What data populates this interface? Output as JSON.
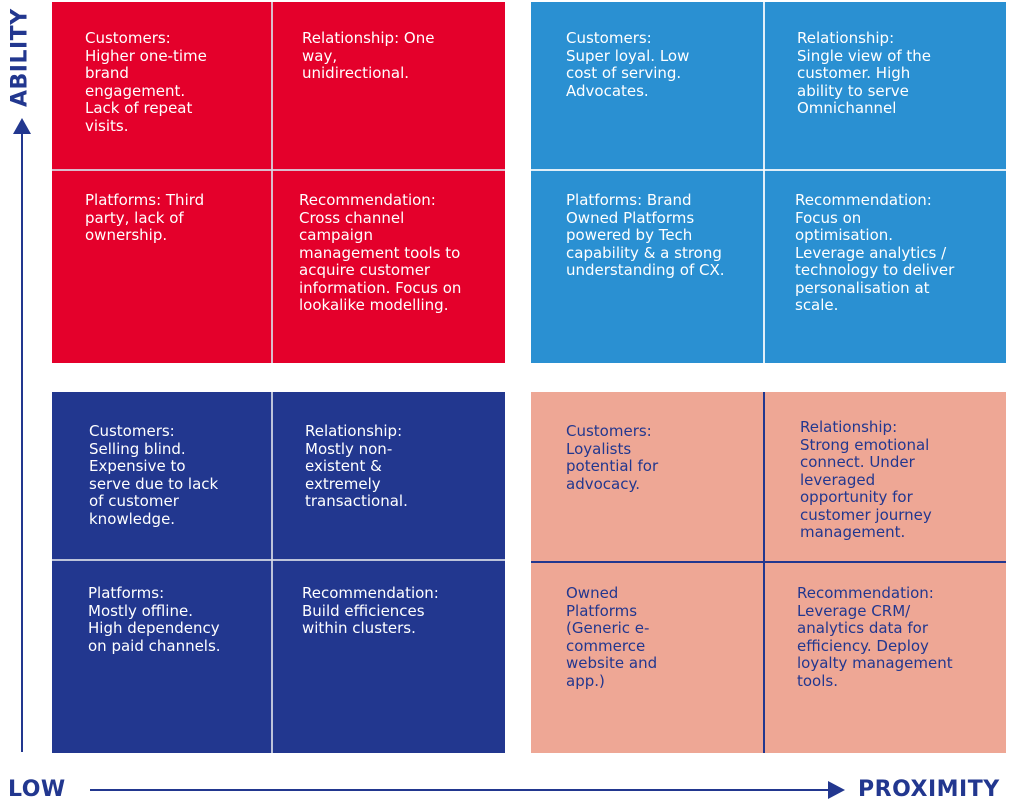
{
  "axes": {
    "y_label": "ABILITY",
    "x_low_label": "LOW",
    "x_label": "PROXIMITY",
    "color": "#22378f"
  },
  "quadrants": {
    "top_left": {
      "color": "#e4002b",
      "customers": "Customers:\nHigher one-time\nbrand\nengagement.\nLack of repeat\nvisits.",
      "relationship": "Relationship: One\nway,\nunidirectional.",
      "platforms": "Platforms: Third\nparty, lack of\nownership.",
      "recommendation": "Recommendation:\nCross channel\ncampaign\nmanagement tools to\nacquire customer\ninformation. Focus on\nlookalike modelling."
    },
    "top_right": {
      "color": "#2a90d2",
      "customers": "Customers:\nSuper loyal. Low\ncost of serving.\nAdvocates.",
      "relationship": "Relationship:\nSingle view of the\ncustomer. High\nability to serve\nOmnichannel",
      "platforms": "Platforms: Brand\nOwned Platforms\npowered by Tech\ncapability & a strong\nunderstanding of CX.",
      "recommendation": "Recommendation:\nFocus on\noptimisation.\nLeverage analytics /\ntechnology to deliver\npersonalisation at\nscale."
    },
    "bottom_left": {
      "color": "#22378f",
      "customers": "Customers:\nSelling blind.\nExpensive to\nserve due to lack\nof customer\nknowledge.",
      "relationship": "Relationship:\nMostly non-\nexistent &\nextremely\ntransactional.",
      "platforms": "Platforms:\nMostly offline.\nHigh dependency\non paid channels.",
      "recommendation": "Recommendation:\nBuild efficiences\nwithin clusters."
    },
    "bottom_right": {
      "color": "#eea795",
      "customers": "Customers:\nLoyalists\npotential for\nadvocacy.",
      "relationship": "Relationship:\nStrong emotional\nconnect. Under\nleveraged\nopportunity for\ncustomer journey\nmanagement.",
      "platforms": "Owned\nPlatforms\n(Generic e-\ncommerce\nwebsite and\napp.)",
      "recommendation": "Recommendation:\nLeverage CRM/\nanalytics data for\nefficiency. Deploy\nloyalty management\ntools."
    }
  }
}
